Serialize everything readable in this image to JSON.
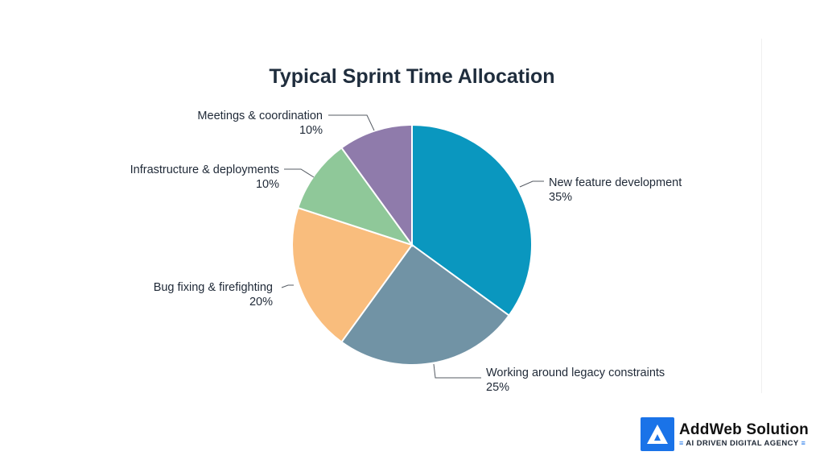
{
  "chart_data": {
    "type": "pie",
    "title": "Typical Sprint Time Allocation",
    "start_angle_deg": 0,
    "direction": "clockwise",
    "slices": [
      {
        "label": "New feature development",
        "value": 35,
        "value_label": "35%",
        "color": "#0a97bf"
      },
      {
        "label": "Working around legacy constraints",
        "value": 25,
        "value_label": "25%",
        "color": "#7193a5"
      },
      {
        "label": "Bug fixing & firefighting",
        "value": 20,
        "value_label": "20%",
        "color": "#f9bd7d"
      },
      {
        "label": "Infrastructure & deployments",
        "value": 10,
        "value_label": "10%",
        "color": "#8fc899"
      },
      {
        "label": "Meetings & coordination",
        "value": 10,
        "value_label": "10%",
        "color": "#8f7bab"
      }
    ]
  },
  "branding": {
    "name": "AddWeb Solution",
    "tagline": "AI DRIVEN DIGITAL AGENCY",
    "icon": "addweb-logo-icon",
    "accent_color": "#1a73e8"
  }
}
